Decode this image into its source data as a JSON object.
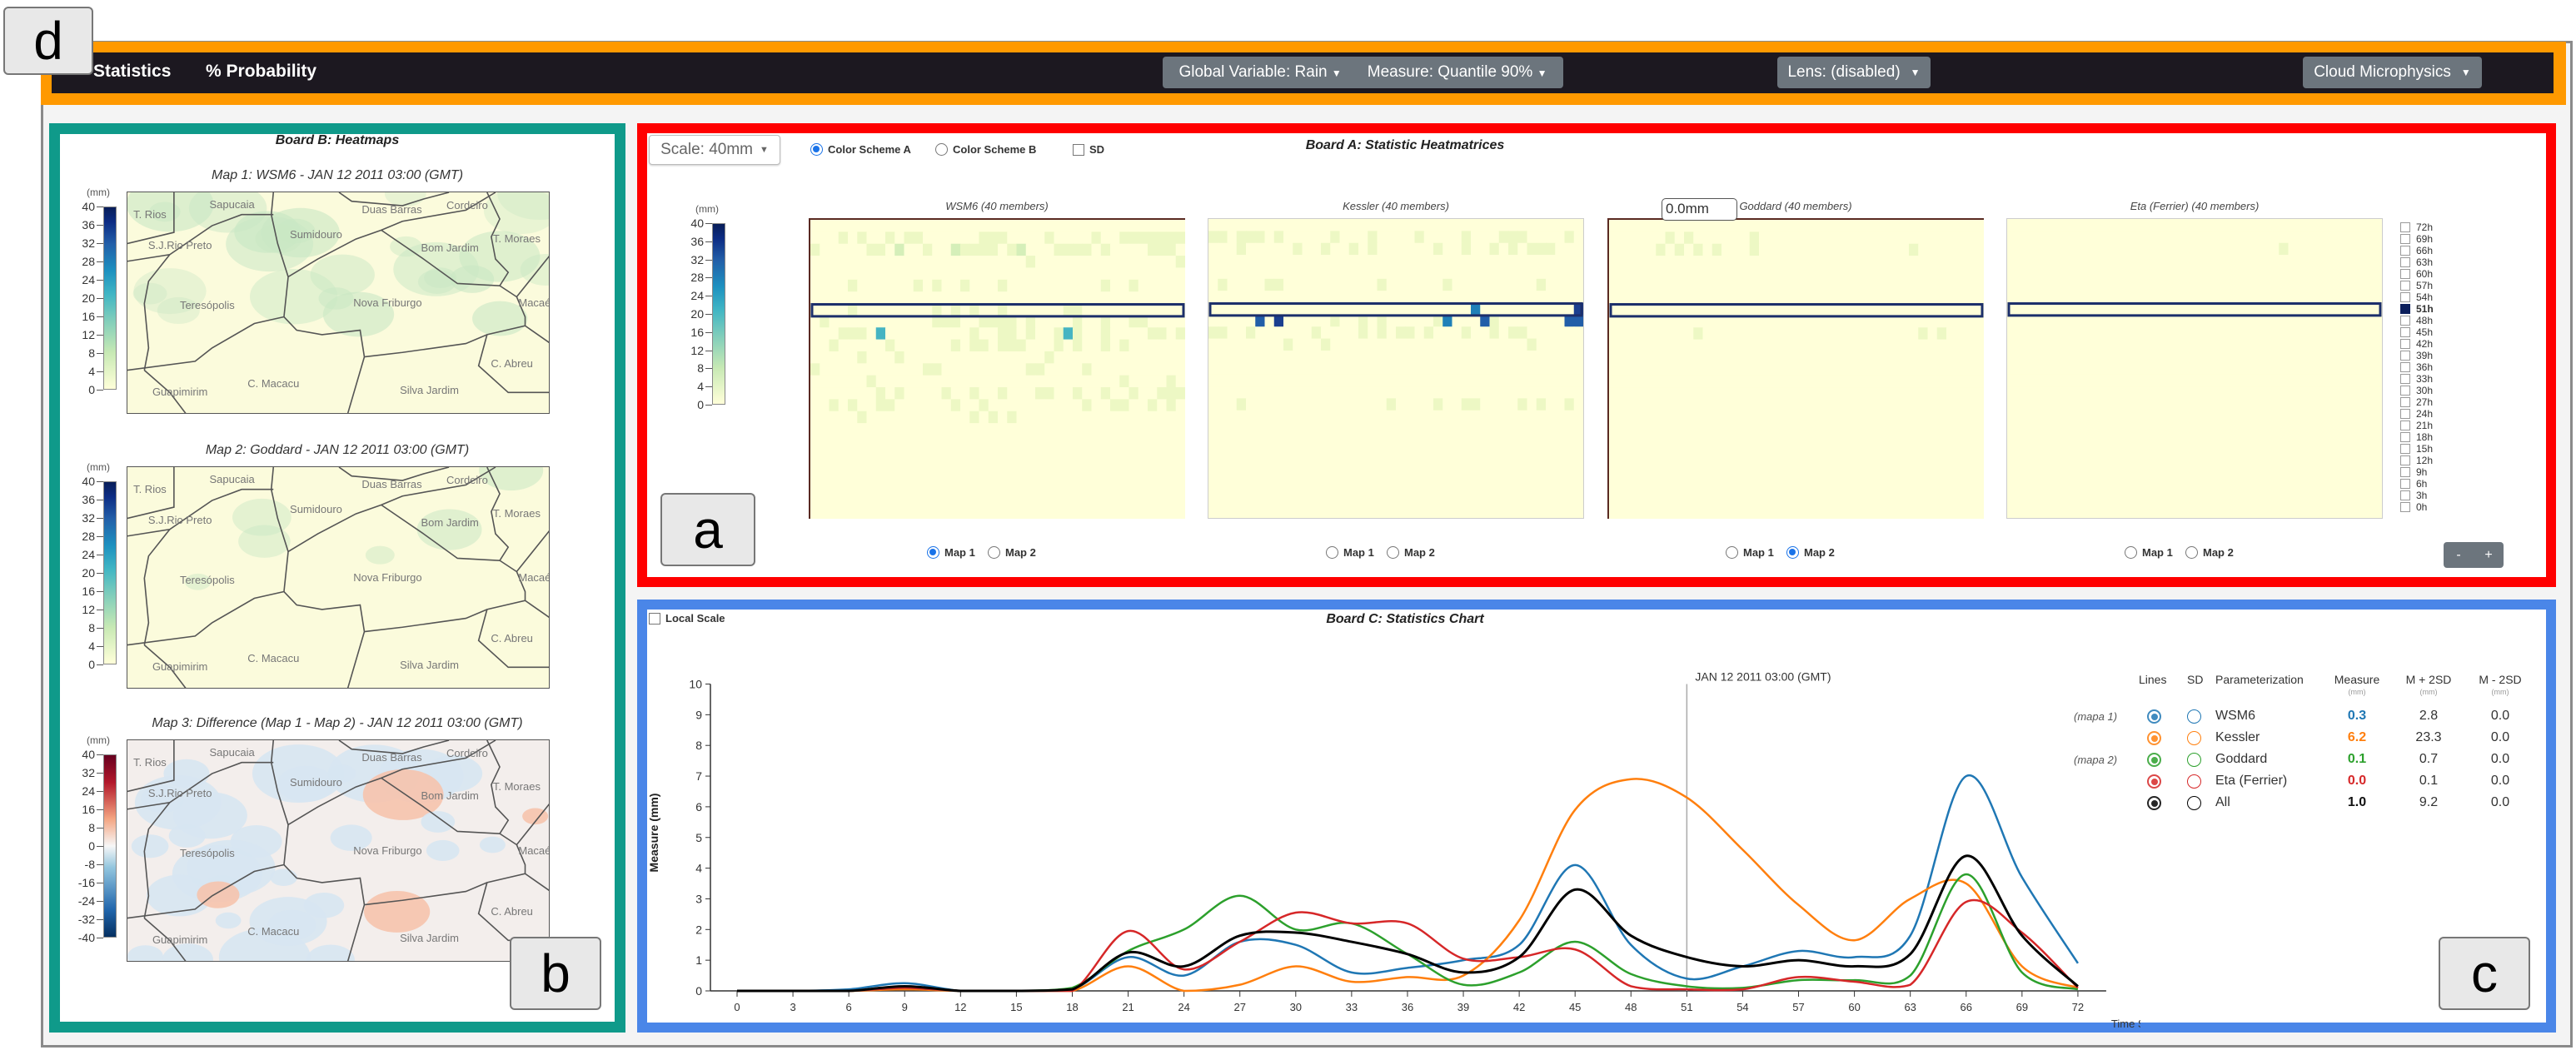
{
  "panel_labels": {
    "a": "a",
    "b": "b",
    "c": "c",
    "d": "d"
  },
  "nav": {
    "statistics": "Statistics",
    "probability_icon": "%",
    "probability": "Probability",
    "global_variable": "Global Variable: Rain",
    "measure": "Measure: Quantile 90%",
    "lens": "Lens: (disabled)",
    "cloud": "Cloud Microphysics",
    "colors": {
      "bar": "#1c1820",
      "frame": "#ff9900",
      "button": "#6c757d"
    }
  },
  "board_b": {
    "title": "Board B: Heatmaps",
    "place_names": [
      "T. Rios",
      "Sapucaia",
      "Duas Barras",
      "Cordeiro",
      "Sumidouro",
      "S.J.Rio Preto",
      "Bom Jardim",
      "T. Moraes",
      "Teresópolis",
      "Nova Friburgo",
      "Macaé",
      "C. Abreu",
      "C. Macacu",
      "Silva Jardim",
      "Guapimirim"
    ],
    "maps": [
      {
        "title": "Map 1: WSM6 - JAN 12 2011 03:00 (GMT)",
        "unit": "(mm)",
        "ticks": [
          "40",
          "36",
          "32",
          "28",
          "24",
          "20",
          "16",
          "12",
          "8",
          "4",
          "0"
        ],
        "scheme": "sequential"
      },
      {
        "title": "Map 2: Goddard - JAN 12 2011 03:00 (GMT)",
        "unit": "(mm)",
        "ticks": [
          "40",
          "36",
          "32",
          "28",
          "24",
          "20",
          "16",
          "12",
          "8",
          "4",
          "0"
        ],
        "scheme": "sequential"
      },
      {
        "title": "Map 3: Difference (Map 1 - Map 2) - JAN 12 2011 03:00 (GMT)",
        "unit": "(mm)",
        "ticks": [
          "40",
          "32",
          "24",
          "16",
          "8",
          "0",
          "-8",
          "-16",
          "-24",
          "-32",
          "-40"
        ],
        "scheme": "diverging"
      }
    ]
  },
  "board_a": {
    "title": "Board A: Statistic Heatmatrices",
    "scale": "Scale: 40mm",
    "color_scheme_a": "Color Scheme A",
    "color_scheme_b": "Color Scheme B",
    "sd": "SD",
    "unit": "(mm)",
    "ticks": [
      "40",
      "36",
      "32",
      "28",
      "24",
      "20",
      "16",
      "12",
      "8",
      "4",
      "0"
    ],
    "tooltip": "0.0mm",
    "map1": "Map 1",
    "map2": "Map 2",
    "panels": [
      {
        "title": "WSM6 (40 members)",
        "selected_map": 1
      },
      {
        "title": "Kessler (40 members)",
        "selected_map": 0
      },
      {
        "title": "Goddard (40 members)",
        "selected_map": 2
      },
      {
        "title": "Eta (Ferrier) (40 members)",
        "selected_map": 0
      }
    ],
    "time_steps": [
      "72h",
      "69h",
      "66h",
      "63h",
      "60h",
      "57h",
      "54h",
      "51h",
      "48h",
      "45h",
      "42h",
      "39h",
      "36h",
      "33h",
      "30h",
      "27h",
      "24h",
      "21h",
      "18h",
      "15h",
      "12h",
      "9h",
      "6h",
      "3h",
      "0h"
    ],
    "selected_time": "51h",
    "zoom_out": "-",
    "zoom_in": "+"
  },
  "board_c": {
    "title": "Board C: Statistics Chart",
    "local_scale": "Local Scale",
    "legend": {
      "headers": {
        "lines": "Lines",
        "sd": "SD",
        "param": "Parameterization",
        "measure": "Measure",
        "mplus": "M + 2SD",
        "mminus": "M - 2SD",
        "unit": "(mm)"
      },
      "rows": [
        {
          "tag": "(mapa 1)",
          "name": "WSM6",
          "measure": "0.3",
          "mplus": "2.8",
          "mminus": "0.0",
          "color": "#1f77b4"
        },
        {
          "tag": "",
          "name": "Kessler",
          "measure": "6.2",
          "mplus": "23.3",
          "mminus": "0.0",
          "color": "#ff7f0e"
        },
        {
          "tag": "(mapa 2)",
          "name": "Goddard",
          "measure": "0.1",
          "mplus": "0.7",
          "mminus": "0.0",
          "color": "#2ca02c"
        },
        {
          "tag": "",
          "name": "Eta (Ferrier)",
          "measure": "0.0",
          "mplus": "0.1",
          "mminus": "0.0",
          "color": "#d62728"
        },
        {
          "tag": "",
          "name": "All",
          "measure": "1.0",
          "mplus": "9.2",
          "mminus": "0.0",
          "color": "#000000"
        }
      ]
    }
  },
  "chart_data": {
    "type": "line",
    "title": "Board C: Statistics Chart",
    "xlabel": "Time Step (h)",
    "ylabel": "Measure (mm)",
    "xlim": [
      0,
      72
    ],
    "ylim": [
      0,
      10
    ],
    "x_ticks": [
      "0",
      "3",
      "6",
      "9",
      "12",
      "15",
      "18",
      "21",
      "24",
      "27",
      "30",
      "33",
      "36",
      "39",
      "42",
      "45",
      "48",
      "51",
      "54",
      "57",
      "60",
      "63",
      "66",
      "69",
      "72"
    ],
    "y_ticks": [
      "0",
      "1",
      "2",
      "3",
      "4",
      "5",
      "6",
      "7",
      "8",
      "9",
      "10"
    ],
    "marker": {
      "x": 51,
      "label": "JAN 12 2011 03:00 (GMT)"
    },
    "x": [
      0,
      3,
      6,
      9,
      12,
      15,
      18,
      21,
      24,
      27,
      30,
      33,
      36,
      39,
      42,
      45,
      48,
      51,
      54,
      57,
      60,
      63,
      66,
      69,
      72
    ],
    "series": [
      {
        "name": "WSM6",
        "color": "#1f77b4",
        "values": [
          0,
          0,
          0.05,
          0.25,
          0,
          0,
          0.05,
          1.1,
          0.5,
          1.6,
          1.5,
          0.6,
          0.75,
          1.0,
          1.5,
          4.1,
          1.5,
          0.4,
          0.8,
          1.3,
          1.1,
          1.8,
          7.0,
          3.7,
          0.9
        ]
      },
      {
        "name": "Kessler",
        "color": "#ff7f0e",
        "values": [
          0,
          0,
          0,
          0.05,
          0,
          0,
          0,
          0.8,
          0,
          0.2,
          0.8,
          0.3,
          0.45,
          0.5,
          2.3,
          5.9,
          6.9,
          6.3,
          4.6,
          2.8,
          1.65,
          3.0,
          3.5,
          0.8,
          0.1
        ]
      },
      {
        "name": "Goddard",
        "color": "#2ca02c",
        "values": [
          0,
          0,
          0,
          0.1,
          0,
          0,
          0.1,
          1.3,
          2.0,
          3.1,
          2.0,
          2.2,
          1.2,
          0.2,
          0.6,
          1.6,
          0.55,
          0.15,
          0.1,
          0.35,
          0.35,
          0.5,
          3.8,
          0.6,
          0.05
        ]
      },
      {
        "name": "Eta (Ferrier)",
        "color": "#d62728",
        "values": [
          0,
          0,
          0,
          0.1,
          0,
          0,
          0,
          1.95,
          0.7,
          1.6,
          2.55,
          2.2,
          2.2,
          1.05,
          1.1,
          1.35,
          0.15,
          0.05,
          0.05,
          0.45,
          0.3,
          0.2,
          2.9,
          1.9,
          0.1
        ]
      },
      {
        "name": "All",
        "color": "#000000",
        "values": [
          0,
          0,
          0,
          0.15,
          0,
          0,
          0.05,
          1.25,
          0.8,
          1.8,
          1.9,
          1.6,
          1.2,
          0.6,
          1.1,
          3.3,
          1.8,
          1.1,
          0.8,
          1.0,
          0.8,
          1.2,
          4.4,
          1.8,
          0.15
        ]
      }
    ],
    "grid": false
  }
}
